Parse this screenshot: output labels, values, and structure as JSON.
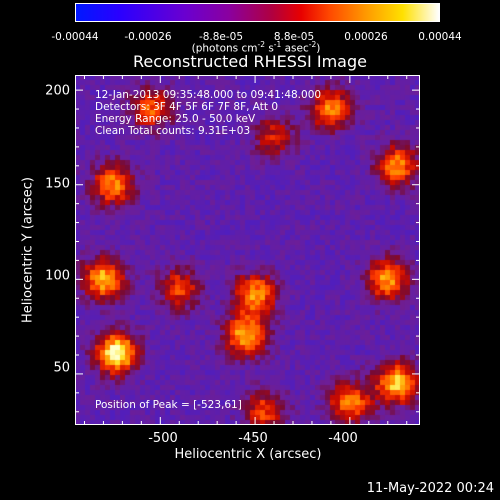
{
  "colorbar": {
    "ticks": [
      "-0.00044",
      "-0.00026",
      "-8.8e-05",
      "8.8e-05",
      "0.00026",
      "0.00044"
    ],
    "units_prefix": "(photons cm",
    "units_exp1": "-2",
    "units_mid1": " s",
    "units_exp2": "-1",
    "units_mid2": " asec",
    "units_exp3": "-2",
    "units_suffix": ")"
  },
  "title": "Reconstructed RHESSI Image",
  "info_lines": [
    "12-Jan-2013 09:35:48.000 to 09:41:48.000",
    "Detectors: 3F 4F 5F 6F 7F 8F, Att 0",
    "Energy Range: 25.0 - 50.0 keV",
    "Clean    Total counts: 9.31E+03"
  ],
  "peak_text": "Position of Peak = [-523,61]",
  "date": "11-May-2022 00:24",
  "chart_data": {
    "type": "heatmap",
    "title": "Reconstructed RHESSI Image",
    "xlabel": "Heliocentric X (arcsec)",
    "ylabel": "Heliocentric Y (arcsec)",
    "x_ticks": [
      "-500",
      "-450",
      "-400"
    ],
    "y_ticks": [
      "200",
      "150",
      "100",
      "50"
    ],
    "xlim": [
      -545,
      -363
    ],
    "ylim": [
      23,
      208
    ],
    "colorscale_range": [
      -0.00044,
      0.00044
    ],
    "peak": [
      -523,
      61
    ],
    "hot_regions": [
      {
        "x": -523,
        "y": 61,
        "level": 1.0
      },
      {
        "x": -530,
        "y": 100,
        "level": 0.8
      },
      {
        "x": -525,
        "y": 150,
        "level": 0.7
      },
      {
        "x": -505,
        "y": 190,
        "level": 0.6
      },
      {
        "x": -455,
        "y": 70,
        "level": 0.8
      },
      {
        "x": -450,
        "y": 92,
        "level": 0.75
      },
      {
        "x": -490,
        "y": 95,
        "level": 0.55
      },
      {
        "x": -410,
        "y": 190,
        "level": 0.7
      },
      {
        "x": -375,
        "y": 160,
        "level": 0.7
      },
      {
        "x": -380,
        "y": 100,
        "level": 0.75
      },
      {
        "x": -375,
        "y": 45,
        "level": 0.85
      },
      {
        "x": -400,
        "y": 35,
        "level": 0.7
      },
      {
        "x": -445,
        "y": 30,
        "level": 0.55
      },
      {
        "x": -440,
        "y": 175,
        "level": 0.45
      }
    ]
  }
}
